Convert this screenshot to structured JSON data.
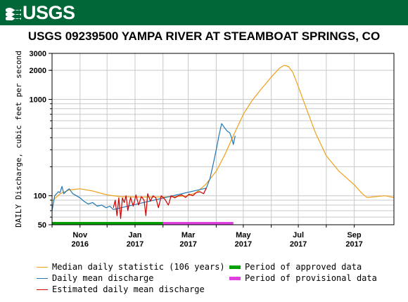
{
  "header": {
    "logo_text": "USGS",
    "logo_icon": "usgs-wave-icon",
    "banner_color": "#006838"
  },
  "chart_data": {
    "type": "line",
    "title": "USGS 09239500 YAMPA RIVER AT STEAMBOAT SPRINGS, CO",
    "ylabel": "DAILY Discharge, cubic feet per second",
    "xlabel": "",
    "yscale": "log",
    "ylim": [
      50,
      3000
    ],
    "ytick_labels": [
      "3000",
      "2000",
      "1000",
      "100",
      "50"
    ],
    "yticks": [
      3000,
      2000,
      1000,
      100,
      50
    ],
    "xlim": [
      "2016-10-01",
      "2017-10-15"
    ],
    "xtick_labels": [
      {
        "month": "Nov",
        "year": "2016",
        "date": "2016-11-01"
      },
      {
        "month": "Jan",
        "year": "2017",
        "date": "2017-01-01"
      },
      {
        "month": "Mar",
        "year": "2017",
        "date": "2017-03-01"
      },
      {
        "month": "May",
        "year": "2017",
        "date": "2017-05-01"
      },
      {
        "month": "Jul",
        "year": "2017",
        "date": "2017-07-01"
      },
      {
        "month": "Sep",
        "year": "2017",
        "date": "2017-09-01"
      }
    ],
    "grid": true,
    "legend_position": "bottom",
    "series": [
      {
        "name": "Median daily statistic (106 years)",
        "color": "#f0a018",
        "points": [
          [
            "2016-10-01",
            88
          ],
          [
            "2016-10-10",
            105
          ],
          [
            "2016-10-20",
            115
          ],
          [
            "2016-11-01",
            118
          ],
          [
            "2016-11-15",
            112
          ],
          [
            "2016-12-01",
            102
          ],
          [
            "2016-12-15",
            98
          ],
          [
            "2017-01-01",
            97
          ],
          [
            "2017-01-15",
            97
          ],
          [
            "2017-02-01",
            97
          ],
          [
            "2017-02-15",
            98
          ],
          [
            "2017-03-01",
            100
          ],
          [
            "2017-03-10",
            108
          ],
          [
            "2017-03-20",
            130
          ],
          [
            "2017-04-01",
            180
          ],
          [
            "2017-04-10",
            260
          ],
          [
            "2017-04-20",
            420
          ],
          [
            "2017-05-01",
            700
          ],
          [
            "2017-05-10",
            950
          ],
          [
            "2017-05-20",
            1250
          ],
          [
            "2017-06-01",
            1700
          ],
          [
            "2017-06-10",
            2100
          ],
          [
            "2017-06-15",
            2250
          ],
          [
            "2017-06-20",
            2200
          ],
          [
            "2017-06-25",
            1900
          ],
          [
            "2017-07-01",
            1350
          ],
          [
            "2017-07-10",
            800
          ],
          [
            "2017-07-20",
            450
          ],
          [
            "2017-08-01",
            260
          ],
          [
            "2017-08-15",
            180
          ],
          [
            "2017-09-01",
            130
          ],
          [
            "2017-09-10",
            105
          ],
          [
            "2017-09-15",
            96
          ],
          [
            "2017-09-25",
            98
          ],
          [
            "2017-10-05",
            100
          ],
          [
            "2017-10-15",
            96
          ]
        ]
      },
      {
        "name": "Daily mean discharge",
        "color": "#1f77b4",
        "points": [
          [
            "2016-10-01",
            70
          ],
          [
            "2016-10-04",
            100
          ],
          [
            "2016-10-08",
            110
          ],
          [
            "2016-10-10",
            108
          ],
          [
            "2016-10-12",
            125
          ],
          [
            "2016-10-14",
            105
          ],
          [
            "2016-10-17",
            112
          ],
          [
            "2016-10-20",
            118
          ],
          [
            "2016-10-24",
            105
          ],
          [
            "2016-10-28",
            100
          ],
          [
            "2016-11-01",
            95
          ],
          [
            "2016-11-05",
            88
          ],
          [
            "2016-11-10",
            82
          ],
          [
            "2016-11-15",
            85
          ],
          [
            "2016-11-20",
            78
          ],
          [
            "2016-11-25",
            80
          ],
          [
            "2016-11-30",
            75
          ],
          [
            "2016-12-04",
            78
          ],
          [
            "2016-12-08",
            72
          ],
          [
            "2017-03-21",
            120
          ],
          [
            "2017-03-25",
            150
          ],
          [
            "2017-03-28",
            200
          ],
          [
            "2017-04-01",
            300
          ],
          [
            "2017-04-04",
            420
          ],
          [
            "2017-04-07",
            560
          ],
          [
            "2017-04-10",
            510
          ],
          [
            "2017-04-13",
            470
          ],
          [
            "2017-04-16",
            450
          ],
          [
            "2017-04-18",
            400
          ],
          [
            "2017-04-20",
            340
          ],
          [
            "2017-04-22",
            420
          ]
        ]
      },
      {
        "name": "Estimated daily mean discharge",
        "color": "#cc0000",
        "points": [
          [
            "2016-12-08",
            75
          ],
          [
            "2016-12-10",
            90
          ],
          [
            "2016-12-12",
            62
          ],
          [
            "2016-12-14",
            95
          ],
          [
            "2016-12-16",
            58
          ],
          [
            "2016-12-18",
            95
          ],
          [
            "2016-12-20",
            85
          ],
          [
            "2016-12-22",
            100
          ],
          [
            "2016-12-24",
            70
          ],
          [
            "2016-12-27",
            96
          ],
          [
            "2016-12-30",
            78
          ],
          [
            "2017-01-02",
            102
          ],
          [
            "2017-01-05",
            80
          ],
          [
            "2017-01-08",
            98
          ],
          [
            "2017-01-11",
            90
          ],
          [
            "2017-01-13",
            62
          ],
          [
            "2017-01-15",
            105
          ],
          [
            "2017-01-18",
            88
          ],
          [
            "2017-01-21",
            100
          ],
          [
            "2017-01-24",
            95
          ],
          [
            "2017-01-27",
            75
          ],
          [
            "2017-01-30",
            100
          ],
          [
            "2017-02-03",
            92
          ],
          [
            "2017-02-07",
            80
          ],
          [
            "2017-02-10",
            100
          ],
          [
            "2017-02-14",
            95
          ],
          [
            "2017-02-18",
            100
          ],
          [
            "2017-02-22",
            102
          ],
          [
            "2017-02-26",
            96
          ],
          [
            "2017-03-02",
            104
          ],
          [
            "2017-03-06",
            100
          ],
          [
            "2017-03-10",
            108
          ],
          [
            "2017-03-14",
            110
          ],
          [
            "2017-03-18",
            105
          ],
          [
            "2017-03-21",
            120
          ]
        ]
      }
    ],
    "approval_bars": [
      {
        "name": "Period of approved data",
        "color": "#00a000",
        "start": "2016-10-01",
        "end": "2017-02-01"
      },
      {
        "name": "Period of provisional data",
        "color": "#e040e0",
        "start": "2017-02-01",
        "end": "2017-04-20"
      }
    ]
  },
  "legend": {
    "items": [
      {
        "label": "Median daily statistic (106 years)",
        "color": "#f0a018",
        "style": "line"
      },
      {
        "label": "Daily mean discharge",
        "color": "#1f77b4",
        "style": "line"
      },
      {
        "label": "Estimated daily mean discharge",
        "color": "#cc0000",
        "style": "line"
      },
      {
        "label": "Period of approved data",
        "color": "#00a000",
        "style": "bar"
      },
      {
        "label": "Period of provisional data",
        "color": "#e040e0",
        "style": "bar"
      }
    ]
  }
}
